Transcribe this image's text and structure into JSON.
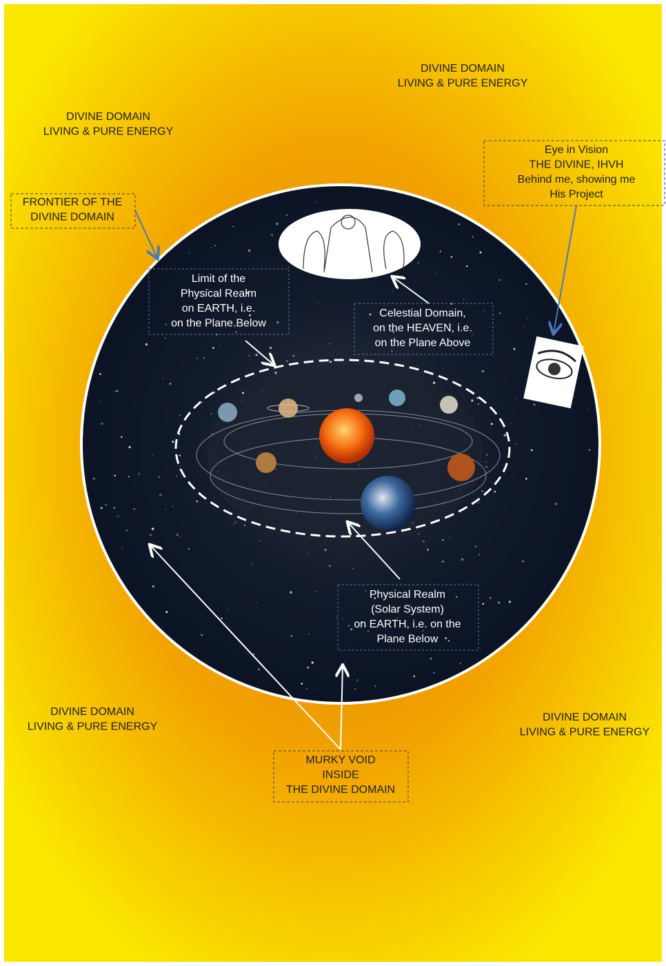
{
  "divine_top_right": {
    "lines": [
      "DIVINE DOMAIN",
      "LIVING & PURE ENERGY"
    ]
  },
  "divine_top_left": {
    "lines": [
      "DIVINE DOMAIN",
      "LIVING & PURE ENERGY"
    ]
  },
  "frontier": {
    "lines": [
      "FRONTIER OF THE",
      "DIVINE DOMAIN"
    ]
  },
  "eye_in_vision": {
    "lines": [
      "Eye in Vision",
      "THE DIVINE, IHVH",
      "Behind me, showing me",
      "His Project"
    ]
  },
  "limit_physical": {
    "lines": [
      "Limit of the",
      "Physical Realm",
      "on EARTH, i.e.",
      "on the Plane Below"
    ]
  },
  "celestial": {
    "lines": [
      "Celestial Domain,",
      "on the HEAVEN, i.e.",
      "on the Plane Above"
    ]
  },
  "physical_realm": {
    "lines": [
      "Physical Realm",
      "(Solar System)",
      "on EARTH, i.e. on the",
      "Plane Below"
    ]
  },
  "divine_bottom_left": {
    "lines": [
      "DIVINE DOMAIN",
      "LIVING & PURE ENERGY"
    ]
  },
  "divine_bottom_right": {
    "lines": [
      "DIVINE DOMAIN",
      "LIVING & PURE ENERGY"
    ]
  },
  "murky_void": {
    "lines": [
      "MURKY VOID",
      "INSIDE",
      "THE DIVINE DOMAIN"
    ]
  }
}
